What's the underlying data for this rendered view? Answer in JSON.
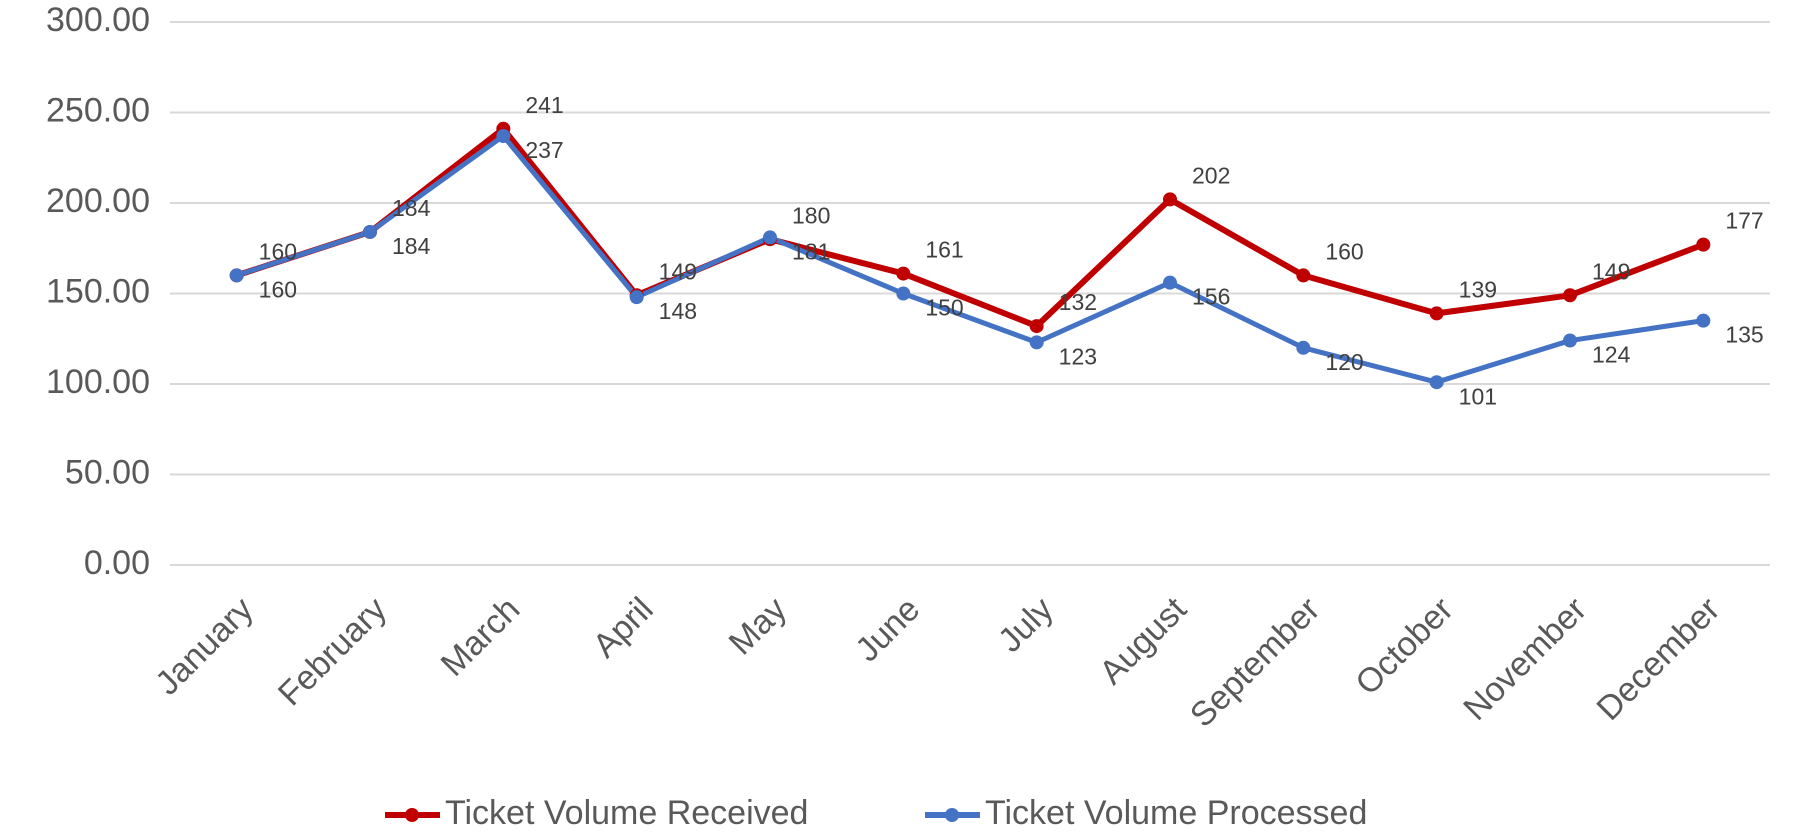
{
  "chart_data": {
    "type": "line",
    "categories": [
      "January",
      "February",
      "March",
      "April",
      "May",
      "June",
      "July",
      "August",
      "September",
      "October",
      "November",
      "December"
    ],
    "series": [
      {
        "name": "Ticket Volume Received",
        "color": "#c00000",
        "values": [
          160,
          184,
          241,
          149,
          180,
          161,
          132,
          202,
          160,
          139,
          149,
          177
        ]
      },
      {
        "name": "Ticket Volume Processed",
        "color": "#4472c4",
        "values": [
          160,
          184,
          237,
          148,
          181,
          150,
          123,
          156,
          120,
          101,
          124,
          135
        ]
      }
    ],
    "ylim": [
      0,
      300
    ],
    "yticks": [
      {
        "value": 0,
        "label": "0.00"
      },
      {
        "value": 50,
        "label": "50.00"
      },
      {
        "value": 100,
        "label": "100.00"
      },
      {
        "value": 150,
        "label": "150.00"
      },
      {
        "value": 200,
        "label": "200.00"
      },
      {
        "value": 250,
        "label": "250.00"
      },
      {
        "value": 300,
        "label": "300.00"
      }
    ],
    "grid": true,
    "legend": "bottom"
  }
}
